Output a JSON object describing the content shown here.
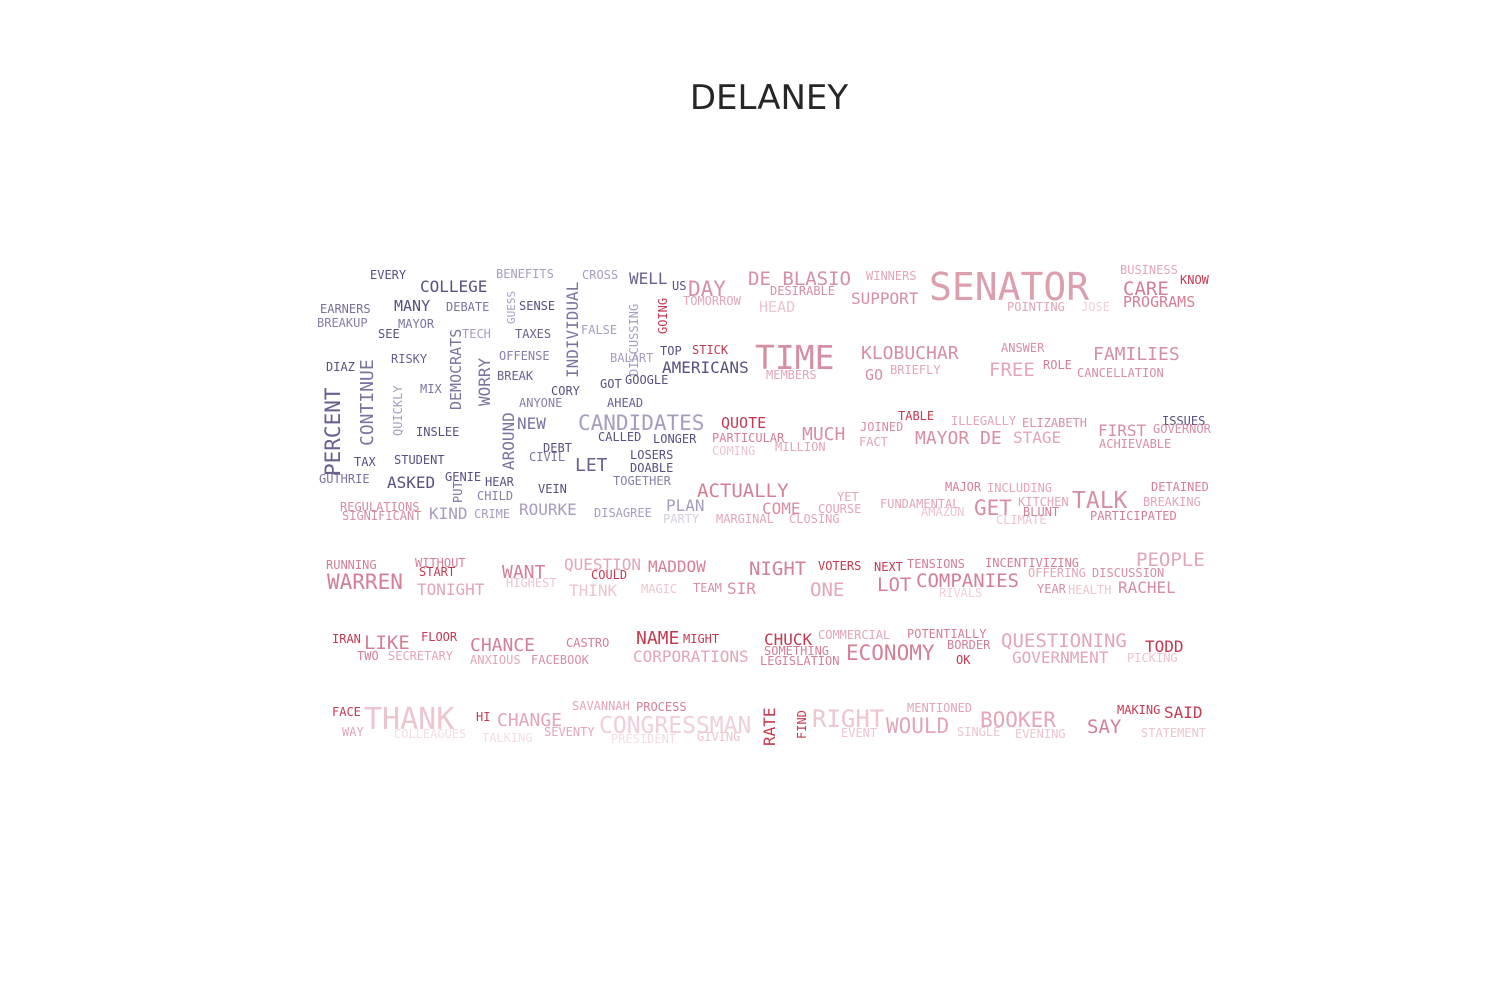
{
  "title": "DELANEY",
  "words": [
    {
      "text": "EVERY",
      "color": "#5b4f80"
    },
    {
      "text": "COLLEGE",
      "color": "#5b4f80"
    },
    {
      "text": "BENEFITS",
      "color": "#a89cbe"
    },
    {
      "text": "CROSS",
      "color": "#a89cbe"
    },
    {
      "text": "WELL",
      "color": "#6b5e90"
    },
    {
      "text": "US",
      "color": "#5b4f80"
    },
    {
      "text": "DAY",
      "color": "#d690a0"
    },
    {
      "text": "DE BLASIO",
      "color": "#d68fa0"
    },
    {
      "text": "WINNERS",
      "color": "#e2a6b4"
    },
    {
      "text": "SENATOR",
      "color": "#dba0ac"
    },
    {
      "text": "BUSINESS",
      "color": "#e2a8b5"
    },
    {
      "text": "KNOW",
      "color": "#c6394f"
    },
    {
      "text": "CARE",
      "color": "#d47f93"
    },
    {
      "text": "EARNERS",
      "color": "#7a6e9a"
    },
    {
      "text": "MANY",
      "color": "#5b4f80"
    },
    {
      "text": "DEBATE",
      "color": "#7d72a0"
    },
    {
      "text": "GUESS",
      "color": "#a89cbe"
    },
    {
      "text": "SENSE",
      "color": "#5b4f80"
    },
    {
      "text": "INDIVIDUAL",
      "color": "#7d72a0"
    },
    {
      "text": "DISCUSSING",
      "color": "#a89cbe"
    },
    {
      "text": "GOING",
      "color": "#c6394f"
    },
    {
      "text": "TOMORROW",
      "color": "#e2a6b4"
    },
    {
      "text": "DESIRABLE",
      "color": "#d68fa0"
    },
    {
      "text": "SUPPORT",
      "color": "#d68fa0"
    },
    {
      "text": "HEAD",
      "color": "#ecc5ce"
    },
    {
      "text": "POINTING",
      "color": "#e2a6b4"
    },
    {
      "text": "JOSE",
      "color": "#f0d0d8"
    },
    {
      "text": "PROGRAMS",
      "color": "#d47f93"
    },
    {
      "text": "BREAKUP",
      "color": "#8a7ea9"
    },
    {
      "text": "MAYOR",
      "color": "#7d72a0"
    },
    {
      "text": "SEE",
      "color": "#5b4f80"
    },
    {
      "text": "DEMOCRATS",
      "color": "#7d72a0"
    },
    {
      "text": "TECH",
      "color": "#a89cbe"
    },
    {
      "text": "TAXES",
      "color": "#6b5e90"
    },
    {
      "text": "FALSE",
      "color": "#a89cbe"
    },
    {
      "text": "TOP",
      "color": "#5b4f80"
    },
    {
      "text": "STICK",
      "color": "#c6394f"
    },
    {
      "text": "TIME",
      "color": "#d68fa0"
    },
    {
      "text": "KLOBUCHAR",
      "color": "#d68fa0"
    },
    {
      "text": "ANSWER",
      "color": "#d68fa0"
    },
    {
      "text": "FAMILIES",
      "color": "#d68fa0"
    },
    {
      "text": "DIAZ",
      "color": "#5b4f80"
    },
    {
      "text": "RISKY",
      "color": "#6b5e90"
    },
    {
      "text": "CONTINUE",
      "color": "#7d72a0"
    },
    {
      "text": "WORRY",
      "color": "#7d72a0"
    },
    {
      "text": "OFFENSE",
      "color": "#8a7ea9"
    },
    {
      "text": "BALART",
      "color": "#a89cbe"
    },
    {
      "text": "AMERICANS",
      "color": "#5b4f80"
    },
    {
      "text": "MEMBERS",
      "color": "#e2a6b4"
    },
    {
      "text": "GO",
      "color": "#d68fa0"
    },
    {
      "text": "BRIEFLY",
      "color": "#e2a6b4"
    },
    {
      "text": "FREE",
      "color": "#e2a6b4"
    },
    {
      "text": "ROLE",
      "color": "#d47f93"
    },
    {
      "text": "CANCELLATION",
      "color": "#d68fa0"
    },
    {
      "text": "PERCENT",
      "color": "#6b5e90"
    },
    {
      "text": "MIX",
      "color": "#7d72a0"
    },
    {
      "text": "BREAK",
      "color": "#6b5e90"
    },
    {
      "text": "CORY",
      "color": "#5b4f80"
    },
    {
      "text": "GOT",
      "color": "#5b4f80"
    },
    {
      "text": "GOOGLE",
      "color": "#5b4f80"
    },
    {
      "text": "QUICKLY",
      "color": "#a89cbe"
    },
    {
      "text": "ANYONE",
      "color": "#8a7ea9"
    },
    {
      "text": "AHEAD",
      "color": "#6b5e90"
    },
    {
      "text": "INSLEE",
      "color": "#5b4f80"
    },
    {
      "text": "AROUND",
      "color": "#7d72a0"
    },
    {
      "text": "NEW",
      "color": "#7d72a0"
    },
    {
      "text": "CANDIDATES",
      "color": "#a89cbe"
    },
    {
      "text": "QUOTE",
      "color": "#c6394f"
    },
    {
      "text": "CALLED",
      "color": "#5b4f80"
    },
    {
      "text": "LONGER",
      "color": "#5b4f80"
    },
    {
      "text": "PARTICULAR",
      "color": "#d47f93"
    },
    {
      "text": "MUCH",
      "color": "#d68fa0"
    },
    {
      "text": "JOINED",
      "color": "#d68fa0"
    },
    {
      "text": "TABLE",
      "color": "#c6394f"
    },
    {
      "text": "ILLEGALLY",
      "color": "#e2a6b4"
    },
    {
      "text": "ELIZABETH",
      "color": "#d68fa0"
    },
    {
      "text": "ISSUES",
      "color": "#5b4f80"
    },
    {
      "text": "GOVERNOR",
      "color": "#d68fa0"
    },
    {
      "text": "FIRST",
      "color": "#d68fa0"
    },
    {
      "text": "TAX",
      "color": "#5b4f80"
    },
    {
      "text": "STUDENT",
      "color": "#5b4f80"
    },
    {
      "text": "DEBT",
      "color": "#5b4f80"
    },
    {
      "text": "CIVIL",
      "color": "#7d72a0"
    },
    {
      "text": "LET",
      "color": "#6b5e90"
    },
    {
      "text": "LOSERS",
      "color": "#5b4f80"
    },
    {
      "text": "DOABLE",
      "color": "#5b4f80"
    },
    {
      "text": "COMING",
      "color": "#ecc5ce"
    },
    {
      "text": "MILLION",
      "color": "#e2a6b4"
    },
    {
      "text": "FACT",
      "color": "#e2a6b4"
    },
    {
      "text": "MAYOR DE",
      "color": "#d68fa0"
    },
    {
      "text": "STAGE",
      "color": "#e2a6b4"
    },
    {
      "text": "ACHIEVABLE",
      "color": "#d68fa0"
    },
    {
      "text": "GUTHRIE",
      "color": "#7d72a0"
    },
    {
      "text": "ASKED",
      "color": "#5b4f80"
    },
    {
      "text": "GENIE",
      "color": "#5b4f80"
    },
    {
      "text": "PUT",
      "color": "#7d72a0"
    },
    {
      "text": "HEAR",
      "color": "#5b4f80"
    },
    {
      "text": "TOGETHER",
      "color": "#8a7ea9"
    },
    {
      "text": "CHILD",
      "color": "#8a7ea9"
    },
    {
      "text": "VEIN",
      "color": "#5b4f80"
    },
    {
      "text": "ACTUALLY",
      "color": "#d47f93"
    },
    {
      "text": "MAJOR",
      "color": "#d47f93"
    },
    {
      "text": "INCLUDING",
      "color": "#e2a6b4"
    },
    {
      "text": "DETAINED",
      "color": "#d47f93"
    },
    {
      "text": "REGULATIONS",
      "color": "#d68fa0"
    },
    {
      "text": "SIGNIFICANT",
      "color": "#d68fa0"
    },
    {
      "text": "KIND",
      "color": "#a89cbe"
    },
    {
      "text": "CRIME",
      "color": "#a89cbe"
    },
    {
      "text": "ROURKE",
      "color": "#a89cbe"
    },
    {
      "text": "DISAGREE",
      "color": "#a89cbe"
    },
    {
      "text": "PLAN",
      "color": "#a89cbe"
    },
    {
      "text": "PARTY",
      "color": "#d8cce0"
    },
    {
      "text": "MARGINAL",
      "color": "#e2a6b4"
    },
    {
      "text": "YET",
      "color": "#e2a6b4"
    },
    {
      "text": "COME",
      "color": "#d68fa0"
    },
    {
      "text": "COURSE",
      "color": "#e2a6b4"
    },
    {
      "text": "CLOSING",
      "color": "#e2a6b4"
    },
    {
      "text": "FUNDAMENTAL",
      "color": "#e2a6b4"
    },
    {
      "text": "AMAZON",
      "color": "#ecc5ce"
    },
    {
      "text": "GET",
      "color": "#d68fa0"
    },
    {
      "text": "CLIMATE",
      "color": "#ecc5ce"
    },
    {
      "text": "KITCHEN",
      "color": "#e2a6b4"
    },
    {
      "text": "BLUNT",
      "color": "#d47f93"
    },
    {
      "text": "TALK",
      "color": "#d68fa0"
    },
    {
      "text": "BREAKING",
      "color": "#e2a6b4"
    },
    {
      "text": "PARTICIPATED",
      "color": "#d47f93"
    },
    {
      "text": "RUNNING",
      "color": "#d47f93"
    },
    {
      "text": "WITHOUT",
      "color": "#d47f93"
    },
    {
      "text": "START",
      "color": "#c6394f"
    },
    {
      "text": "WANT",
      "color": "#d47f93"
    },
    {
      "text": "QUESTION",
      "color": "#e2a6b4"
    },
    {
      "text": "COULD",
      "color": "#c6394f"
    },
    {
      "text": "MADDOW",
      "color": "#d47f93"
    },
    {
      "text": "NIGHT",
      "color": "#d47f93"
    },
    {
      "text": "VOTERS",
      "color": "#c6394f"
    },
    {
      "text": "NEXT",
      "color": "#c6394f"
    },
    {
      "text": "TENSIONS",
      "color": "#d47f93"
    },
    {
      "text": "INCENTIVIZING",
      "color": "#d47f93"
    },
    {
      "text": "PEOPLE",
      "color": "#e2a6b4"
    },
    {
      "text": "OFFERING",
      "color": "#e2a6b4"
    },
    {
      "text": "DISCUSSION",
      "color": "#d68fa0"
    },
    {
      "text": "WARREN",
      "color": "#d47f93"
    },
    {
      "text": "TONIGHT",
      "color": "#e2a6b4"
    },
    {
      "text": "HIGHEST",
      "color": "#ecc5ce"
    },
    {
      "text": "THINK",
      "color": "#ecc5ce"
    },
    {
      "text": "MAGIC",
      "color": "#ecc5ce"
    },
    {
      "text": "TEAM",
      "color": "#d68fa0"
    },
    {
      "text": "SIR",
      "color": "#d68fa0"
    },
    {
      "text": "ONE",
      "color": "#e2a6b4"
    },
    {
      "text": "LOT",
      "color": "#d47f93"
    },
    {
      "text": "COMPANIES",
      "color": "#d47f93"
    },
    {
      "text": "RIVALS",
      "color": "#f0d0d8"
    },
    {
      "text": "YEAR",
      "color": "#d68fa0"
    },
    {
      "text": "HEALTH",
      "color": "#ecc5ce"
    },
    {
      "text": "RACHEL",
      "color": "#d68fa0"
    },
    {
      "text": "IRAN",
      "color": "#c6394f"
    },
    {
      "text": "LIKE",
      "color": "#d47f93"
    },
    {
      "text": "FLOOR",
      "color": "#c6394f"
    },
    {
      "text": "TWO",
      "color": "#d47f93"
    },
    {
      "text": "SECRETARY",
      "color": "#e2a6b4"
    },
    {
      "text": "CHANCE",
      "color": "#d47f93"
    },
    {
      "text": "ANXIOUS",
      "color": "#e2a6b4"
    },
    {
      "text": "CASTRO",
      "color": "#d47f93"
    },
    {
      "text": "FACEBOOK",
      "color": "#d68fa0"
    },
    {
      "text": "NAME",
      "color": "#c6394f"
    },
    {
      "text": "MIGHT",
      "color": "#c6394f"
    },
    {
      "text": "CORPORATIONS",
      "color": "#e2a6b4"
    },
    {
      "text": "CHUCK",
      "color": "#c6394f"
    },
    {
      "text": "COMMERCIAL",
      "color": "#e2a6b4"
    },
    {
      "text": "SOMETHING",
      "color": "#d47f93"
    },
    {
      "text": "LEGISLATION",
      "color": "#d47f93"
    },
    {
      "text": "ECONOMY",
      "color": "#d47f93"
    },
    {
      "text": "POTENTIALLY",
      "color": "#d47f93"
    },
    {
      "text": "BORDER",
      "color": "#d47f93"
    },
    {
      "text": "OK",
      "color": "#c6394f"
    },
    {
      "text": "QUESTIONING",
      "color": "#e2a6b4"
    },
    {
      "text": "GOVERNMENT",
      "color": "#e2a6b4"
    },
    {
      "text": "TODD",
      "color": "#c6394f"
    },
    {
      "text": "PICKING",
      "color": "#ecc5ce"
    },
    {
      "text": "FACE",
      "color": "#c6394f"
    },
    {
      "text": "WAY",
      "color": "#e2a6b4"
    },
    {
      "text": "THANK",
      "color": "#ecc5ce"
    },
    {
      "text": "COLLEAGUES",
      "color": "#f3dde2"
    },
    {
      "text": "HI",
      "color": "#c6394f"
    },
    {
      "text": "CHANGE",
      "color": "#e2a6b4"
    },
    {
      "text": "TALKING",
      "color": "#f3dde2"
    },
    {
      "text": "SAVANNAH",
      "color": "#e2a6b4"
    },
    {
      "text": "PROCESS",
      "color": "#d47f93"
    },
    {
      "text": "SEVENTY",
      "color": "#e2a6b4"
    },
    {
      "text": "CONGRESSMAN",
      "color": "#f0d0d8"
    },
    {
      "text": "PRESIDENT",
      "color": "#f3dde2"
    },
    {
      "text": "GIVING",
      "color": "#ecc5ce"
    },
    {
      "text": "RATE",
      "color": "#c6394f"
    },
    {
      "text": "FIND",
      "color": "#c6394f"
    },
    {
      "text": "RIGHT",
      "color": "#ecc5ce"
    },
    {
      "text": "EVENT",
      "color": "#ecc5ce"
    },
    {
      "text": "MENTIONED",
      "color": "#e2a6b4"
    },
    {
      "text": "WOULD",
      "color": "#e2a6b4"
    },
    {
      "text": "SINGLE",
      "color": "#ecc5ce"
    },
    {
      "text": "BOOKER",
      "color": "#e2a6b4"
    },
    {
      "text": "EVENING",
      "color": "#ecc5ce"
    },
    {
      "text": "SAY",
      "color": "#d47f93"
    },
    {
      "text": "MAKING",
      "color": "#c6394f"
    },
    {
      "text": "SAID",
      "color": "#c6394f"
    },
    {
      "text": "STATEMENT",
      "color": "#ecc5ce"
    }
  ]
}
